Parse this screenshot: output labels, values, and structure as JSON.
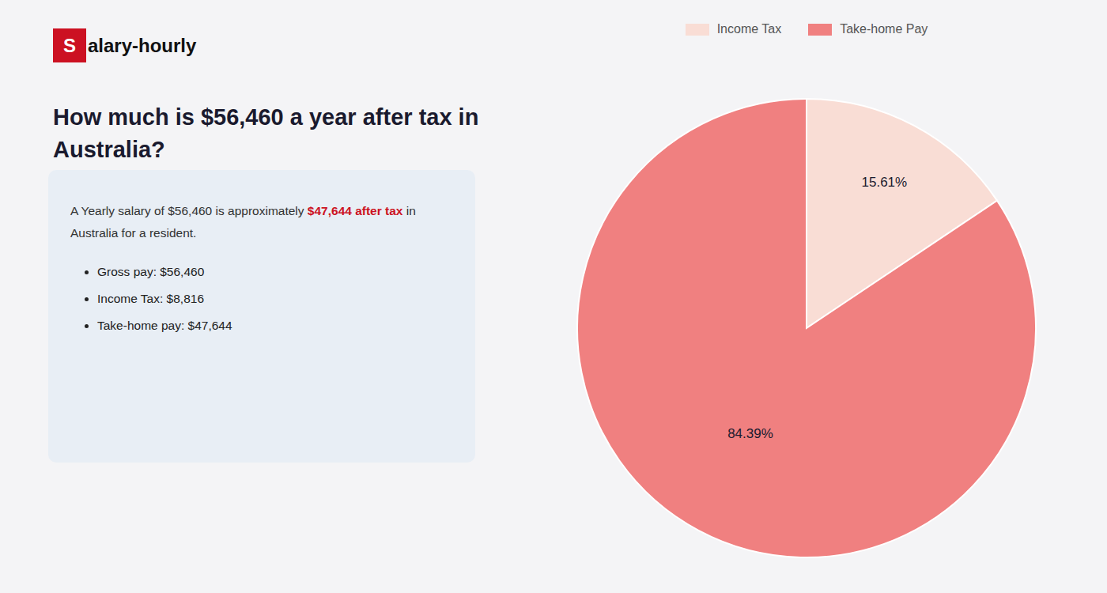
{
  "chart_data": {
    "type": "pie",
    "title": "How much is $56,460 a year after tax in Australia?",
    "annotations": [
      "S",
      "alary-hourly",
      "A Yearly salary of $56,460 is approximately ",
      "$47,644 after tax",
      " in",
      "Australia for a resident.",
      "Gross pay: $56,460",
      "Income Tax: $8,816",
      "Take-home pay: $47,644"
    ],
    "categories": [
      "Income Tax",
      "Take-home Pay"
    ],
    "values": [
      15.61,
      84.39
    ],
    "value_labels": [
      "15.61%",
      "84.39%"
    ],
    "colors": [
      "#f9ddd5",
      "#f08080"
    ],
    "data_labels": true,
    "legend": "top"
  }
}
